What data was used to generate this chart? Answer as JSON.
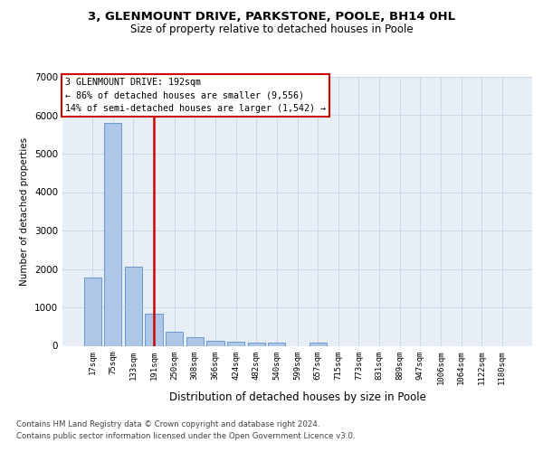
{
  "title": "3, GLENMOUNT DRIVE, PARKSTONE, POOLE, BH14 0HL",
  "subtitle": "Size of property relative to detached houses in Poole",
  "xlabel": "Distribution of detached houses by size in Poole",
  "ylabel": "Number of detached properties",
  "bar_labels": [
    "17sqm",
    "75sqm",
    "133sqm",
    "191sqm",
    "250sqm",
    "308sqm",
    "366sqm",
    "424sqm",
    "482sqm",
    "540sqm",
    "599sqm",
    "657sqm",
    "715sqm",
    "773sqm",
    "831sqm",
    "889sqm",
    "947sqm",
    "1006sqm",
    "1064sqm",
    "1122sqm",
    "1180sqm"
  ],
  "bar_values": [
    1780,
    5800,
    2060,
    830,
    365,
    230,
    130,
    105,
    90,
    75,
    0,
    80,
    0,
    0,
    0,
    0,
    0,
    0,
    0,
    0,
    0
  ],
  "bar_color": "#aec6e8",
  "bar_edge_color": "#5a8fc2",
  "vline_x_idx": 3,
  "vline_color": "#cc0000",
  "annotation_text": "3 GLENMOUNT DRIVE: 192sqm\n← 86% of detached houses are smaller (9,556)\n14% of semi-detached houses are larger (1,542) →",
  "annotation_box_facecolor": "#ffffff",
  "annotation_box_edgecolor": "#cc0000",
  "ylim_max": 7000,
  "yticks": [
    0,
    1000,
    2000,
    3000,
    4000,
    5000,
    6000,
    7000
  ],
  "grid_color": "#c8d8e8",
  "plot_bg_color": "#e8eef6",
  "fig_bg_color": "#ffffff",
  "footer1": "Contains HM Land Registry data © Crown copyright and database right 2024.",
  "footer2": "Contains public sector information licensed under the Open Government Licence v3.0."
}
